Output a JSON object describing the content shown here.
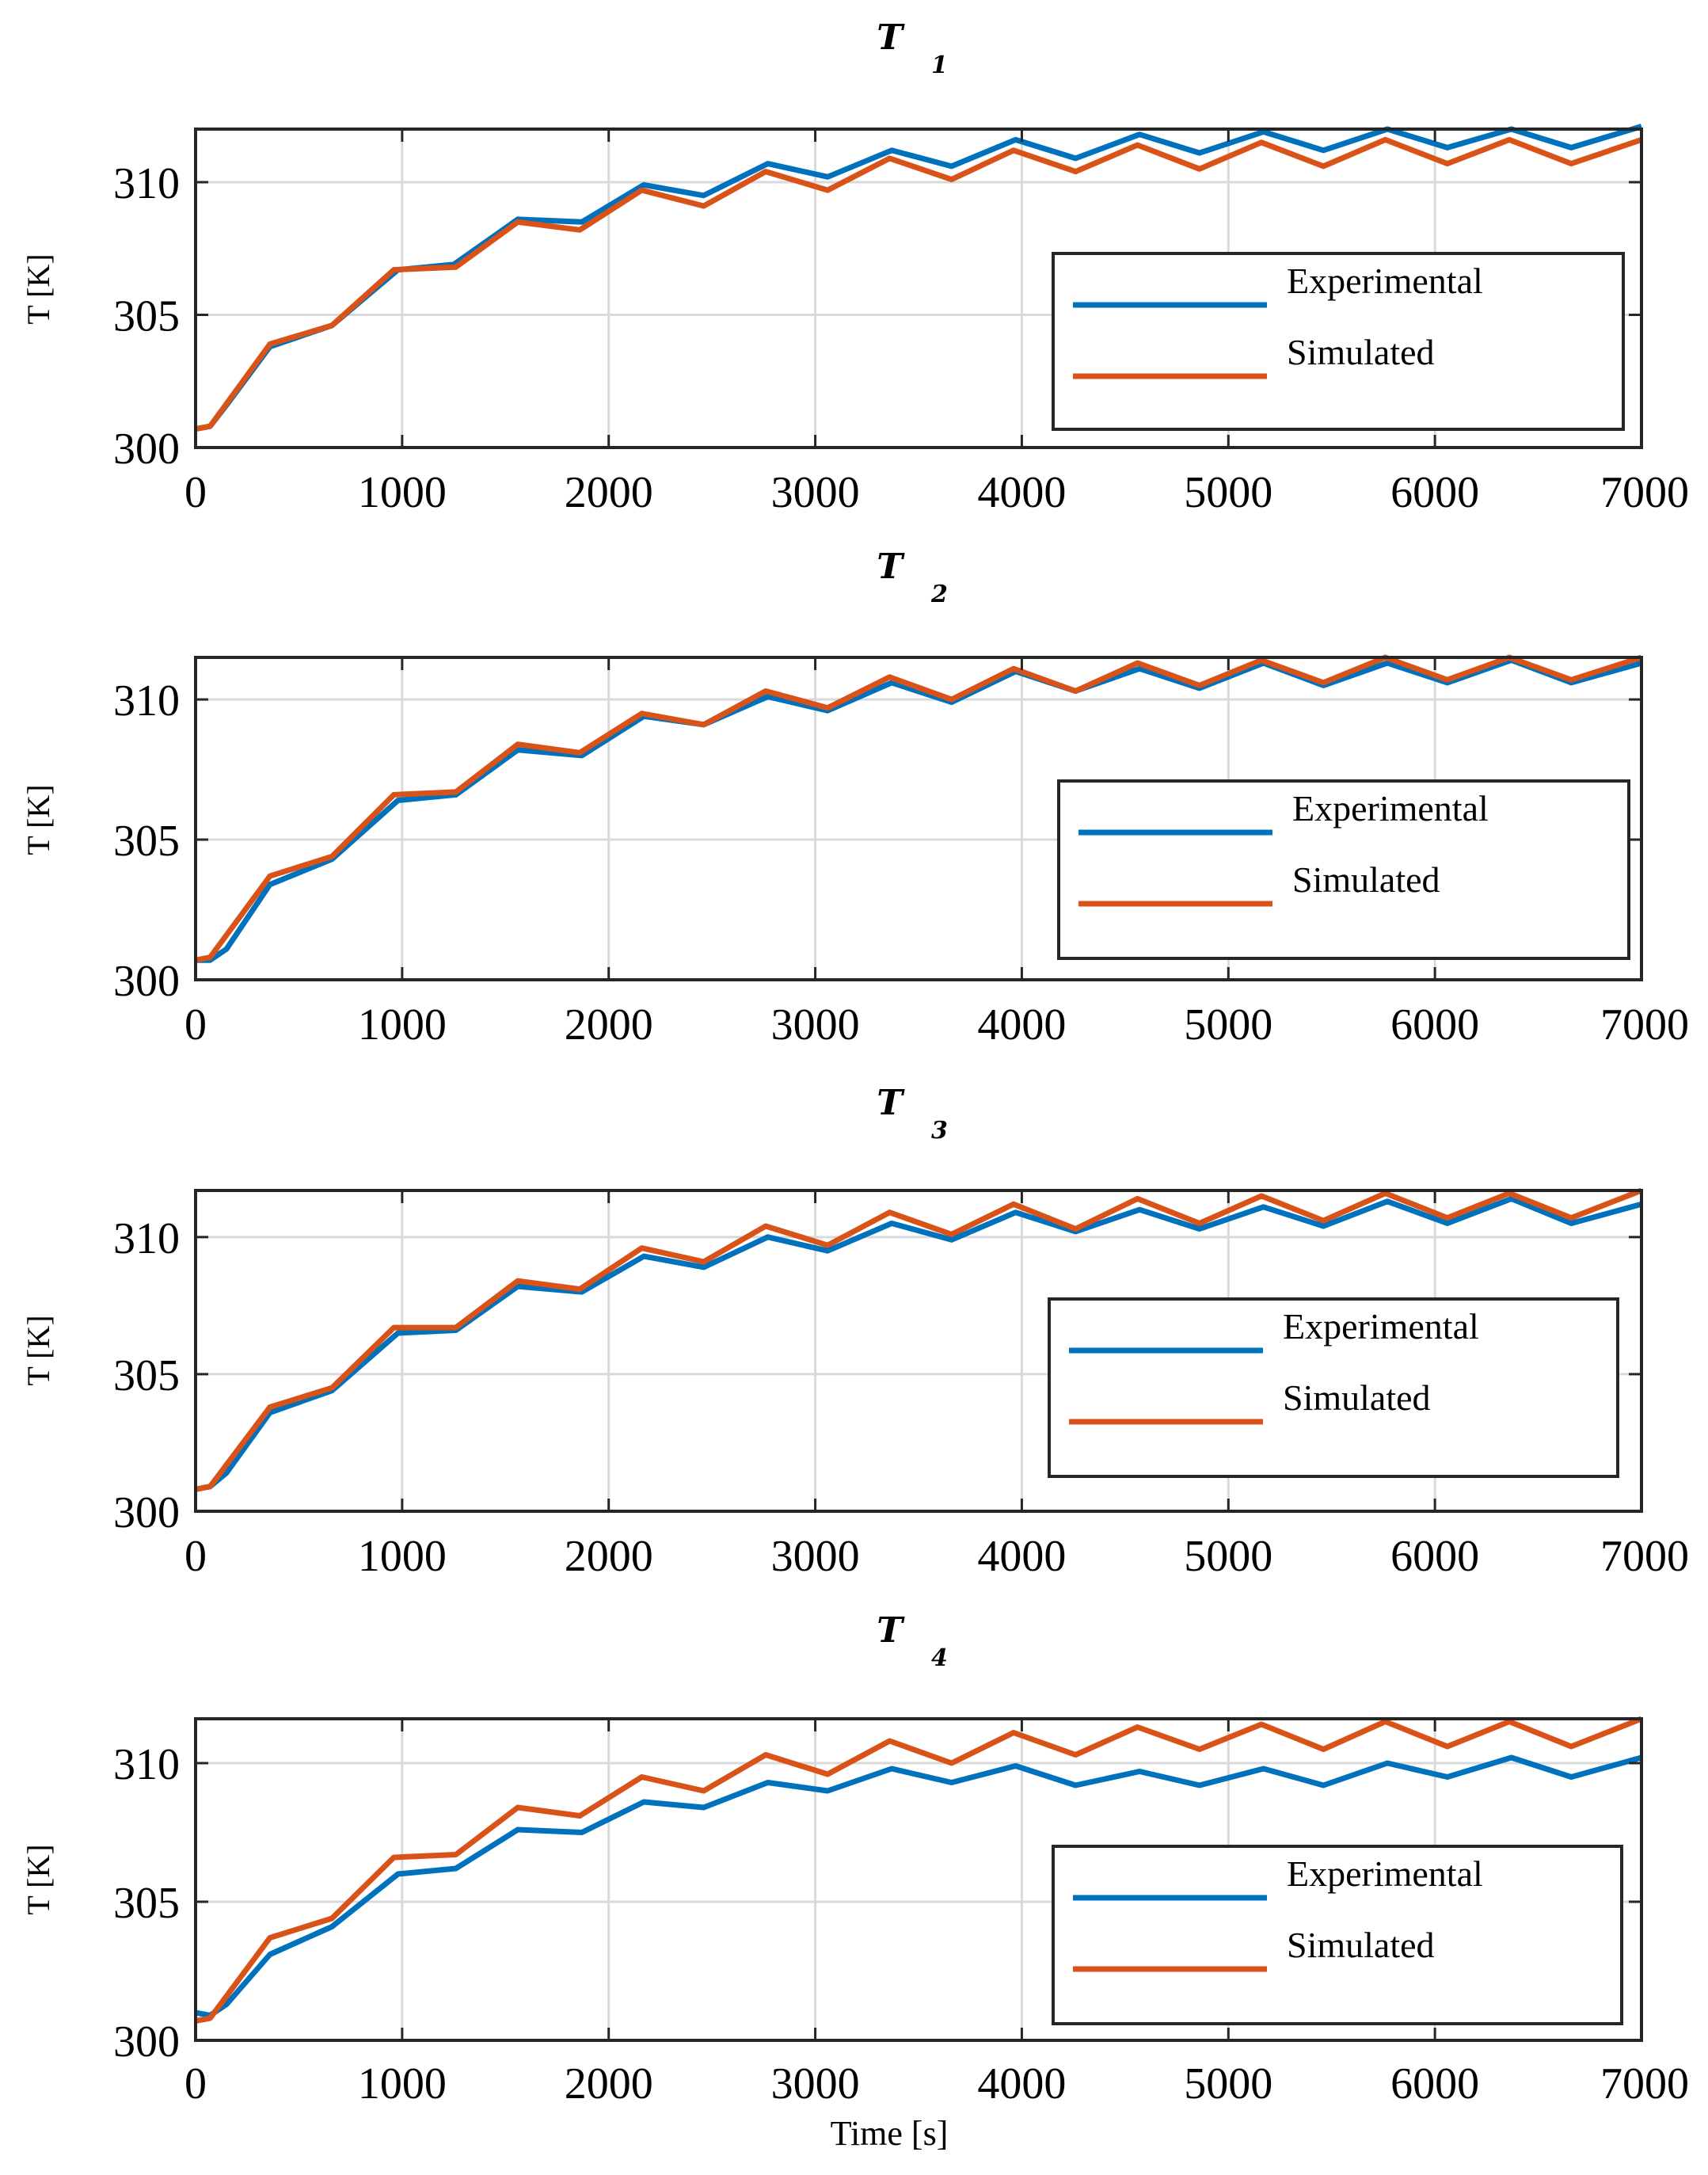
{
  "colors": {
    "experimental": "#0072BD",
    "simulated": "#D95319"
  },
  "chart_data": [
    {
      "type": "line",
      "title": "T",
      "subscript": "1",
      "xlabel": "",
      "ylabel": "T [K]",
      "xlim": [
        0,
        7000
      ],
      "ylim": [
        300,
        312
      ],
      "xticks": [
        "0",
        "1000",
        "2000",
        "3000",
        "4000",
        "5000",
        "6000",
        "7000"
      ],
      "yticks": [
        "300",
        "305",
        "310"
      ],
      "legend": {
        "location": "middle-right",
        "entries": [
          "Experimental",
          "Simulated"
        ]
      },
      "series": [
        {
          "name": "Experimental",
          "x": [
            0,
            70,
            150,
            360,
            660,
            980,
            1250,
            1560,
            1870,
            2170,
            2460,
            2770,
            3060,
            3370,
            3660,
            3970,
            4260,
            4570,
            4860,
            5170,
            5460,
            5770,
            6060,
            6370,
            6660,
            7000
          ],
          "y": [
            300.7,
            300.8,
            301.6,
            303.8,
            304.6,
            306.7,
            306.9,
            308.6,
            308.5,
            309.9,
            309.5,
            310.7,
            310.2,
            311.2,
            310.6,
            311.6,
            310.9,
            311.8,
            311.1,
            311.9,
            311.2,
            312.0,
            311.3,
            312.0,
            311.3,
            312.1
          ]
        },
        {
          "name": "Simulated",
          "x": [
            0,
            70,
            360,
            660,
            960,
            1260,
            1560,
            1860,
            2160,
            2460,
            2760,
            3060,
            3360,
            3660,
            3960,
            4260,
            4560,
            4860,
            5160,
            5460,
            5760,
            6060,
            6360,
            6660,
            7000
          ],
          "y": [
            300.7,
            300.8,
            303.9,
            304.6,
            306.7,
            306.8,
            308.5,
            308.2,
            309.7,
            309.1,
            310.4,
            309.7,
            310.9,
            310.1,
            311.2,
            310.4,
            311.4,
            310.5,
            311.5,
            310.6,
            311.6,
            310.7,
            311.6,
            310.7,
            311.6
          ]
        }
      ]
    },
    {
      "type": "line",
      "title": "T",
      "subscript": "2",
      "xlabel": "",
      "ylabel": "T [K]",
      "xlim": [
        0,
        7000
      ],
      "ylim": [
        300,
        311.5
      ],
      "xticks": [
        "0",
        "1000",
        "2000",
        "3000",
        "4000",
        "5000",
        "6000",
        "7000"
      ],
      "yticks": [
        "300",
        "305",
        "310"
      ],
      "legend": {
        "location": "middle-right",
        "entries": [
          "Experimental",
          "Simulated"
        ]
      },
      "series": [
        {
          "name": "Experimental",
          "x": [
            0,
            70,
            150,
            360,
            660,
            980,
            1260,
            1560,
            1870,
            2170,
            2460,
            2770,
            3060,
            3370,
            3660,
            3970,
            4260,
            4570,
            4860,
            5170,
            5460,
            5770,
            6060,
            6370,
            6660,
            7000
          ],
          "y": [
            300.7,
            300.7,
            301.1,
            303.4,
            304.3,
            306.4,
            306.6,
            308.2,
            308.0,
            309.4,
            309.1,
            310.1,
            309.6,
            310.6,
            309.9,
            311.0,
            310.3,
            311.1,
            310.4,
            311.3,
            310.5,
            311.3,
            310.6,
            311.4,
            310.6,
            311.3
          ]
        },
        {
          "name": "Simulated",
          "x": [
            0,
            70,
            360,
            660,
            960,
            1260,
            1560,
            1860,
            2160,
            2460,
            2760,
            3060,
            3360,
            3660,
            3960,
            4260,
            4560,
            4860,
            5160,
            5460,
            5760,
            6060,
            6360,
            6660,
            7000
          ],
          "y": [
            300.7,
            300.8,
            303.7,
            304.4,
            306.6,
            306.7,
            308.4,
            308.1,
            309.5,
            309.1,
            310.3,
            309.7,
            310.8,
            310.0,
            311.1,
            310.3,
            311.3,
            310.5,
            311.4,
            310.6,
            311.5,
            310.7,
            311.5,
            310.7,
            311.5
          ]
        }
      ]
    },
    {
      "type": "line",
      "title": "T",
      "subscript": "3",
      "xlabel": "",
      "ylabel": "T [K]",
      "xlim": [
        0,
        7000
      ],
      "ylim": [
        300,
        311.7
      ],
      "xticks": [
        "0",
        "1000",
        "2000",
        "3000",
        "4000",
        "5000",
        "6000",
        "7000"
      ],
      "yticks": [
        "300",
        "305",
        "310"
      ],
      "legend": {
        "location": "middle-right",
        "entries": [
          "Experimental",
          "Simulated"
        ]
      },
      "series": [
        {
          "name": "Experimental",
          "x": [
            0,
            70,
            150,
            360,
            660,
            980,
            1260,
            1560,
            1870,
            2170,
            2460,
            2770,
            3060,
            3370,
            3660,
            3970,
            4260,
            4570,
            4860,
            5170,
            5460,
            5770,
            6060,
            6370,
            6660,
            7000
          ],
          "y": [
            300.8,
            300.9,
            301.4,
            303.6,
            304.4,
            306.5,
            306.6,
            308.2,
            308.0,
            309.3,
            308.9,
            310.0,
            309.5,
            310.5,
            309.9,
            310.9,
            310.2,
            311.0,
            310.3,
            311.1,
            310.4,
            311.3,
            310.5,
            311.4,
            310.5,
            311.2
          ]
        },
        {
          "name": "Simulated",
          "x": [
            0,
            70,
            360,
            660,
            960,
            1260,
            1560,
            1860,
            2160,
            2460,
            2760,
            3060,
            3360,
            3660,
            3960,
            4260,
            4560,
            4860,
            5160,
            5460,
            5760,
            6060,
            6360,
            6660,
            7000
          ],
          "y": [
            300.8,
            300.9,
            303.8,
            304.5,
            306.7,
            306.7,
            308.4,
            308.1,
            309.6,
            309.1,
            310.4,
            309.7,
            310.9,
            310.1,
            311.2,
            310.3,
            311.4,
            310.5,
            311.5,
            310.6,
            311.6,
            310.7,
            311.6,
            310.7,
            311.7
          ]
        }
      ]
    },
    {
      "type": "line",
      "title": "T",
      "subscript": "4",
      "xlabel": "Time [s]",
      "ylabel": "T [K]",
      "xlim": [
        0,
        7000
      ],
      "ylim": [
        300,
        311.6
      ],
      "xticks": [
        "0",
        "1000",
        "2000",
        "3000",
        "4000",
        "5000",
        "6000",
        "7000"
      ],
      "yticks": [
        "300",
        "305",
        "310"
      ],
      "legend": {
        "location": "middle-right",
        "entries": [
          "Experimental",
          "Simulated"
        ]
      },
      "series": [
        {
          "name": "Experimental",
          "x": [
            0,
            70,
            150,
            360,
            660,
            980,
            1260,
            1560,
            1870,
            2170,
            2460,
            2770,
            3060,
            3370,
            3660,
            3970,
            4260,
            4570,
            4860,
            5170,
            5460,
            5770,
            6060,
            6370,
            6660,
            7000
          ],
          "y": [
            301.0,
            300.9,
            301.3,
            303.1,
            304.1,
            306.0,
            306.2,
            307.6,
            307.5,
            308.6,
            308.4,
            309.3,
            309.0,
            309.8,
            309.3,
            309.9,
            309.2,
            309.7,
            309.2,
            309.8,
            309.2,
            310.0,
            309.5,
            310.2,
            309.5,
            310.2
          ]
        },
        {
          "name": "Simulated",
          "x": [
            0,
            70,
            360,
            660,
            960,
            1260,
            1560,
            1860,
            2160,
            2460,
            2760,
            3060,
            3360,
            3660,
            3960,
            4260,
            4560,
            4860,
            5160,
            5460,
            5760,
            6060,
            6360,
            6660,
            7000
          ],
          "y": [
            300.7,
            300.8,
            303.7,
            304.4,
            306.6,
            306.7,
            308.4,
            308.1,
            309.5,
            309.0,
            310.3,
            309.6,
            310.8,
            310.0,
            311.1,
            310.3,
            311.3,
            310.5,
            311.4,
            310.5,
            311.5,
            310.6,
            311.5,
            310.6,
            311.6
          ]
        }
      ]
    }
  ]
}
